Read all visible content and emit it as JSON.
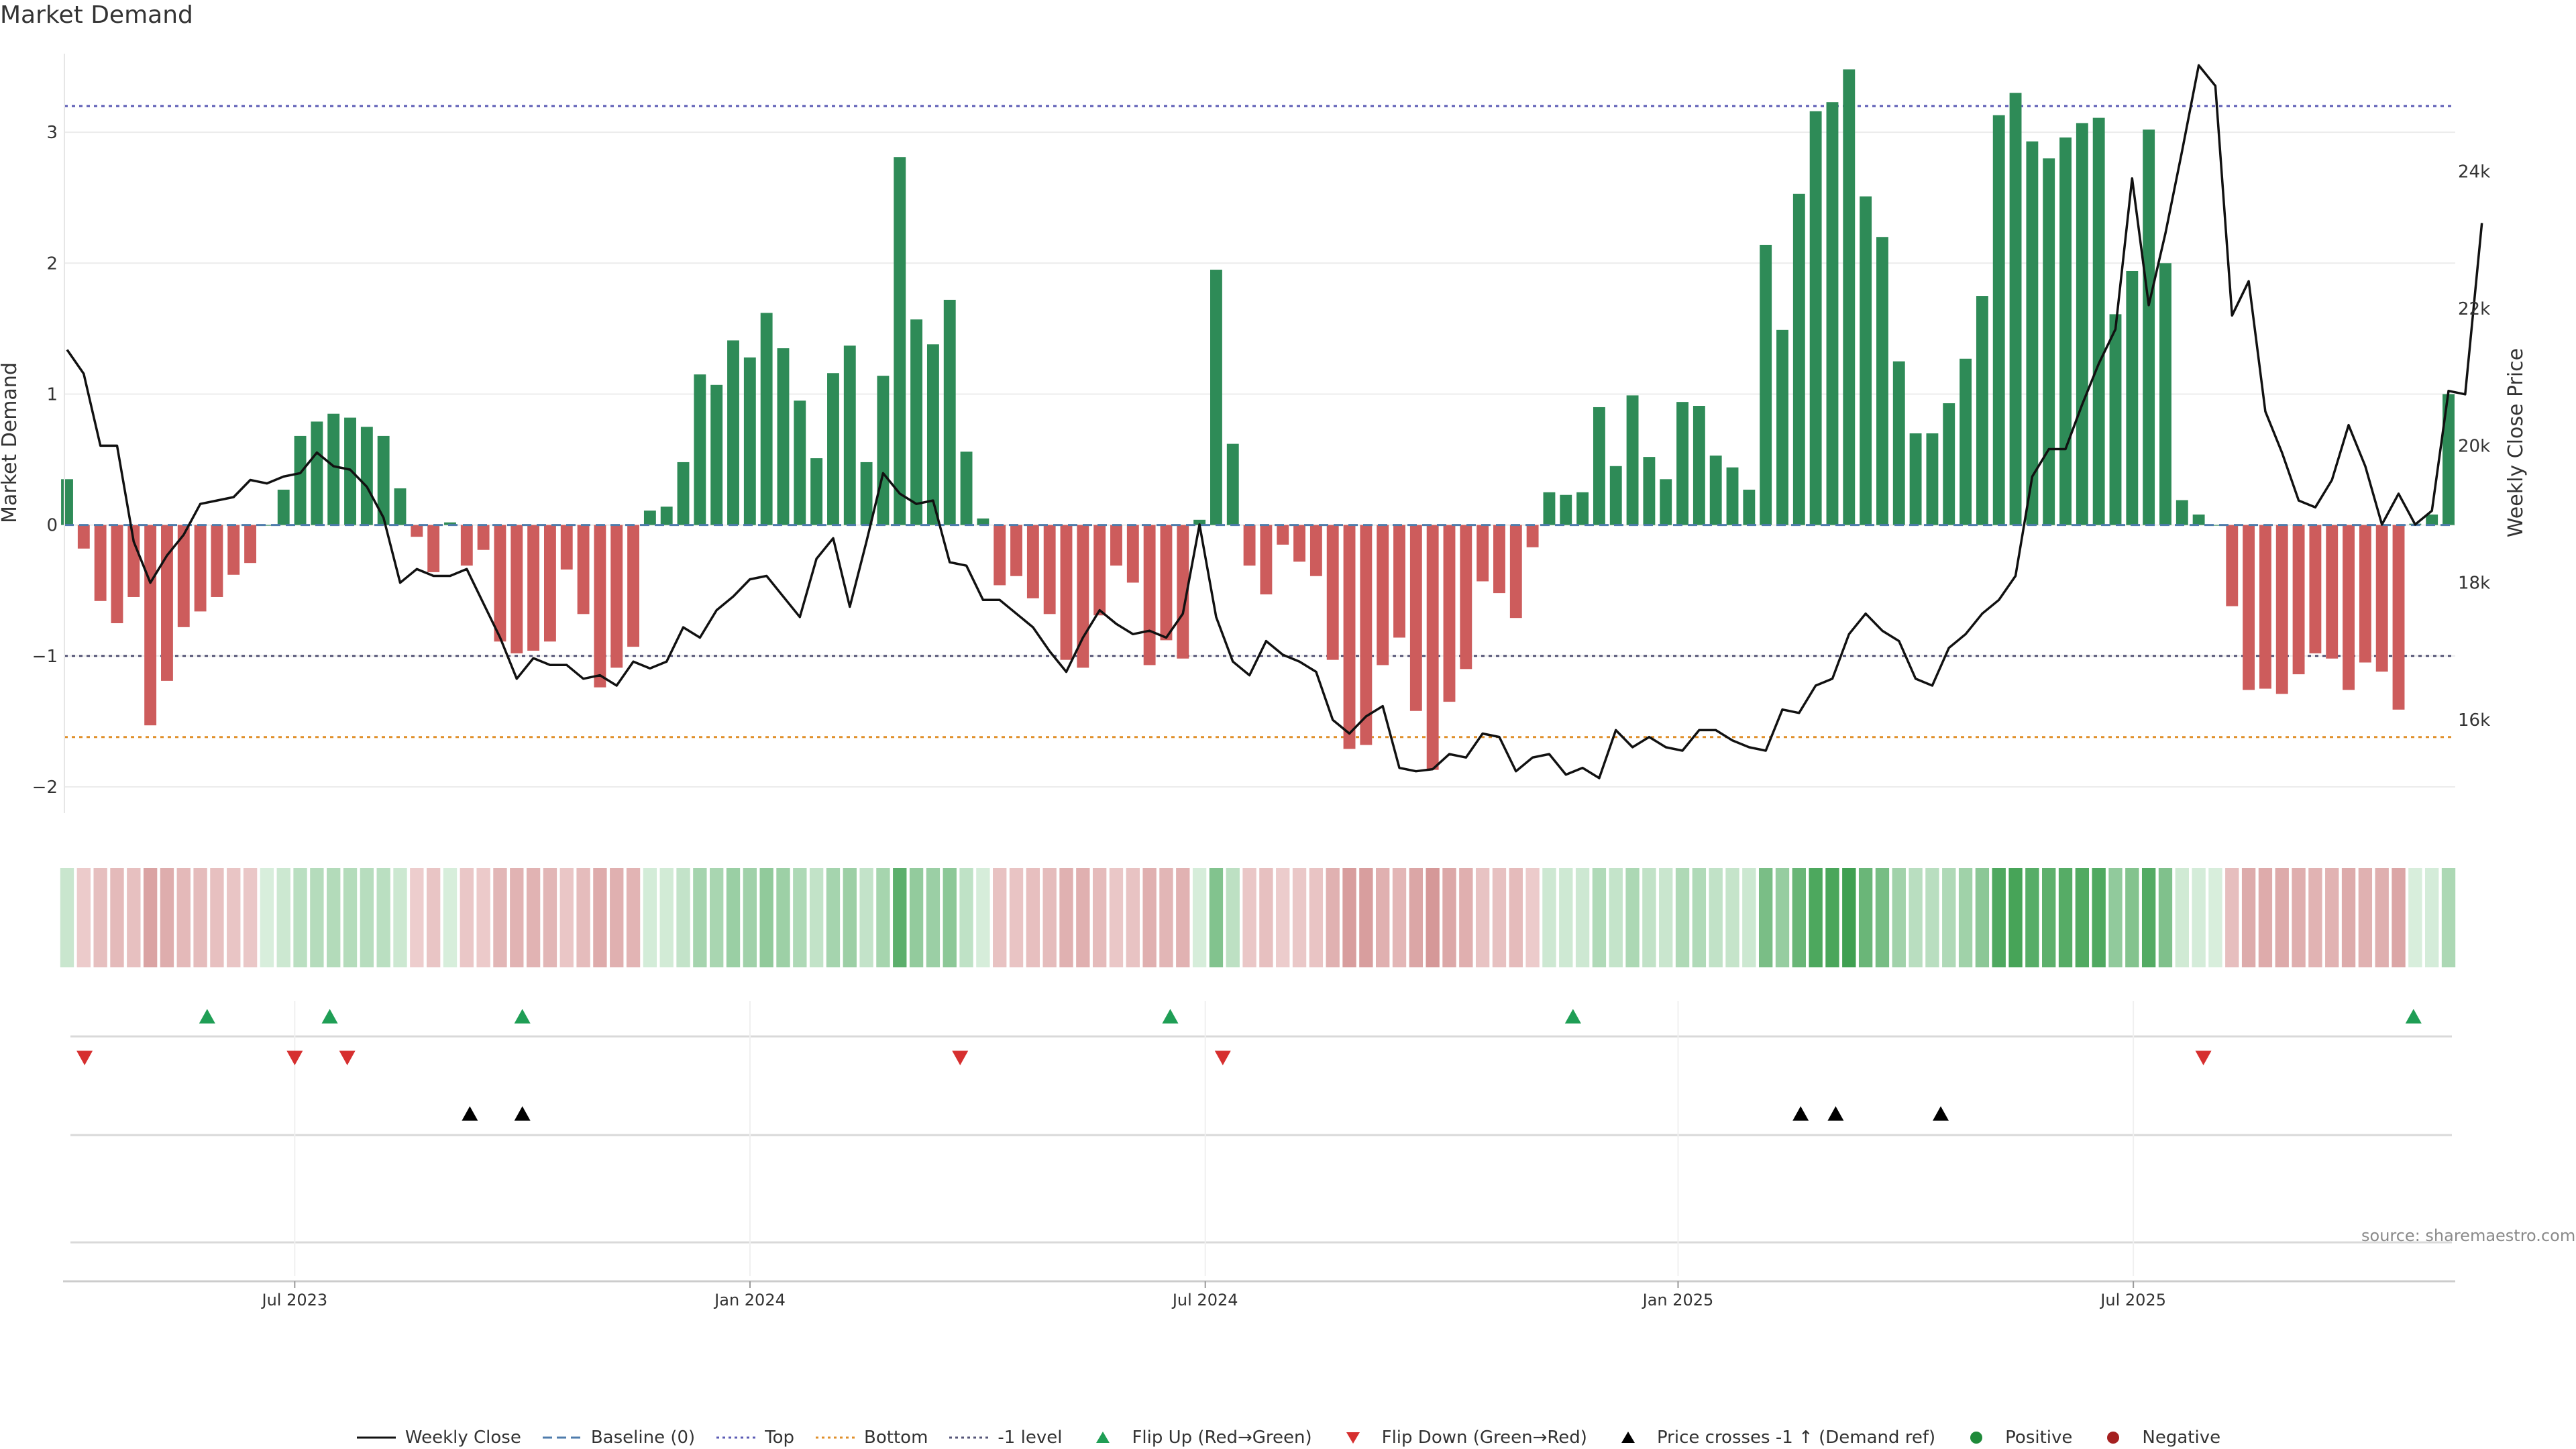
{
  "chart_data": {
    "type": "bar+line",
    "title": "Market Demand",
    "ylabel_left": "Market Demand",
    "ylabel_right": "Weekly Close Price",
    "left_ylim": [
      -2.2,
      3.6
    ],
    "left_yticks": [
      3,
      2,
      1,
      0,
      -1,
      -2
    ],
    "left_yticklabels": [
      "3",
      "2",
      "1",
      "0",
      "−1",
      "−2"
    ],
    "right_ylim": [
      14640,
      25720
    ],
    "right_yticks": [
      24000,
      22000,
      20000,
      18000,
      16000
    ],
    "right_yticklabels": [
      "24k",
      "22k",
      "20k",
      "18k",
      "16k"
    ],
    "reference_lines": {
      "top": 3.2,
      "baseline": 0,
      "bottom": -1.62,
      "minus_one": -1
    },
    "x_start_date": "2023-04-03",
    "x_end_date": "2025-11-10",
    "x_ticks": [
      {
        "date": "2023-07-03",
        "label": "Jul 2023"
      },
      {
        "date": "2024-01-01",
        "label": "Jan 2024"
      },
      {
        "date": "2024-07-01",
        "label": "Jul 2024"
      },
      {
        "date": "2025-01-06",
        "label": "Jan 2025"
      },
      {
        "date": "2025-07-07",
        "label": "Jul 2025"
      }
    ],
    "demand": [
      0.35,
      -0.18,
      -0.58,
      -0.75,
      -0.55,
      -1.53,
      -1.19,
      -0.78,
      -0.66,
      -0.55,
      -0.38,
      -0.29,
      0.0,
      0.27,
      0.68,
      0.79,
      0.85,
      0.82,
      0.75,
      0.68,
      0.28,
      -0.09,
      -0.36,
      0.02,
      -0.31,
      -0.19,
      -0.89,
      -0.98,
      -0.96,
      -0.89,
      -0.34,
      -0.68,
      -1.24,
      -1.09,
      -0.93,
      0.11,
      0.14,
      0.48,
      1.15,
      1.07,
      1.41,
      1.28,
      1.62,
      1.35,
      0.95,
      0.51,
      1.16,
      1.37,
      0.48,
      1.14,
      2.81,
      1.57,
      1.38,
      1.72,
      0.56,
      0.05,
      -0.46,
      -0.39,
      -0.56,
      -0.68,
      -1.03,
      -1.09,
      -0.69,
      -0.31,
      -0.44,
      -1.07,
      -0.88,
      -1.02,
      0.04,
      1.95,
      0.62,
      -0.31,
      -0.53,
      -0.15,
      -0.28,
      -0.39,
      -1.03,
      -1.71,
      -1.68,
      -1.07,
      -0.86,
      -1.42,
      -1.87,
      -1.35,
      -1.1,
      -0.43,
      -0.52,
      -0.71,
      -0.17,
      0.25,
      0.23,
      0.25,
      0.9,
      0.45,
      0.99,
      0.52,
      0.35,
      0.94,
      0.91,
      0.53,
      0.44,
      0.27,
      2.14,
      1.49,
      2.53,
      3.16,
      3.23,
      3.48,
      2.51,
      2.2,
      1.25,
      0.7,
      0.7,
      0.93,
      1.27,
      1.75,
      3.13,
      3.3,
      2.93,
      2.8,
      2.96,
      3.07,
      3.11,
      1.61,
      1.94,
      3.02,
      2.0,
      0.19,
      0.08,
      0.0,
      -0.62,
      -1.26,
      -1.25,
      -1.29,
      -1.14,
      -0.98,
      -1.02,
      -1.26,
      -1.05,
      -1.12,
      -1.41,
      0.01,
      0.08,
      1.0
    ],
    "close": [
      21400,
      21050,
      20000,
      20000,
      18600,
      18000,
      18400,
      18700,
      19150,
      19200,
      19250,
      19500,
      19450,
      19550,
      19600,
      19900,
      19700,
      19650,
      19400,
      18950,
      18000,
      18200,
      18100,
      18100,
      18200,
      17700,
      17200,
      16600,
      16900,
      16800,
      16800,
      16600,
      16650,
      16500,
      16850,
      16750,
      16850,
      17350,
      17200,
      17600,
      17800,
      18050,
      18100,
      17800,
      17500,
      18350,
      18650,
      17650,
      18600,
      19600,
      19300,
      19150,
      19200,
      18300,
      18250,
      17750,
      17750,
      17550,
      17350,
      17000,
      16700,
      17200,
      17600,
      17400,
      17250,
      17300,
      17200,
      17550,
      18850,
      17500,
      16850,
      16650,
      17150,
      16950,
      16850,
      16700,
      16000,
      15800,
      16050,
      16200,
      15300,
      15250,
      15280,
      15500,
      15450,
      15800,
      15750,
      15250,
      15450,
      15500,
      15200,
      15300,
      15150,
      15850,
      15600,
      15750,
      15600,
      15550,
      15850,
      15850,
      15700,
      15600,
      15550,
      16150,
      16100,
      16500,
      16600,
      17250,
      17550,
      17300,
      17150,
      16600,
      16500,
      17050,
      17250,
      17550,
      17750,
      18100,
      19550,
      19950,
      19950,
      20600,
      21200,
      21700,
      23900,
      22050,
      23100,
      24300,
      25550,
      25250,
      21900,
      22400,
      20500,
      19900,
      19200,
      19100,
      19500,
      20300,
      19700,
      18850,
      19300,
      18850,
      19050,
      20800,
      20750,
      23250
    ],
    "flip_up_dates": [
      "2023-05-29",
      "2023-07-17",
      "2023-10-02",
      "2024-06-17",
      "2024-11-25",
      "2025-10-27"
    ],
    "flip_down_dates": [
      "2023-04-10",
      "2023-07-03",
      "2023-07-24",
      "2024-03-25",
      "2024-07-08",
      "2025-08-04"
    ],
    "price_cross_dates": [
      "2023-09-11",
      "2023-10-02",
      "2025-02-24",
      "2025-03-10",
      "2025-04-21"
    ]
  },
  "axis_side_labels": {
    "left": "Market Demand",
    "right": "Weekly Close Price"
  },
  "source_text": "source: sharemaestro.com",
  "legend": [
    {
      "label": "Weekly Close",
      "symbol": "line",
      "color": "#111111"
    },
    {
      "label": "Baseline (0)",
      "symbol": "dash",
      "color": "#4f7cac"
    },
    {
      "label": "Top",
      "symbol": "dots",
      "color": "#5b5bb5"
    },
    {
      "label": "Bottom",
      "symbol": "dots",
      "color": "#e0902b"
    },
    {
      "label": "-1 level",
      "symbol": "dots",
      "color": "#555577"
    },
    {
      "label": "Flip Up (Red→Green)",
      "symbol": "tri-up",
      "color": "#1f9e55"
    },
    {
      "label": "Flip Down (Green→Red)",
      "symbol": "tri-down",
      "color": "#d62f2f"
    },
    {
      "label": "Price crosses -1 ↑ (Demand ref)",
      "symbol": "tri-up",
      "color": "#000000"
    },
    {
      "label": "Positive",
      "symbol": "circle",
      "color": "#1f8a3a"
    },
    {
      "label": "Negative",
      "symbol": "circle",
      "color": "#a52020"
    }
  ],
  "colors": {
    "positive": "#2e8b57",
    "negative": "#cd5c5c",
    "line": "#111111",
    "top": "#5b5bb5",
    "bottom": "#e0902b",
    "minus_one": "#555577",
    "baseline": "#4f7cac"
  }
}
